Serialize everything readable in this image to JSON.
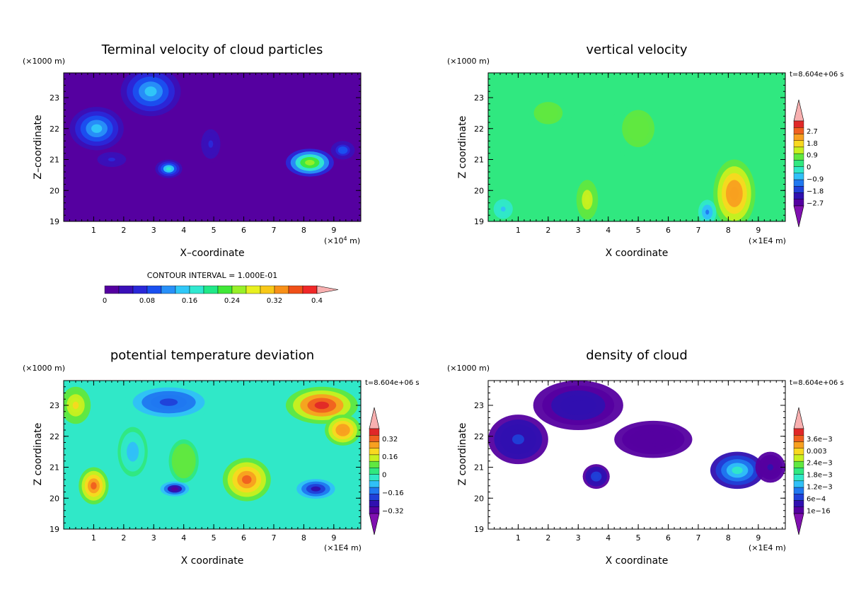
{
  "chart_data": [
    {
      "type": "heatmap",
      "title": "Terminal velocity of cloud particles",
      "xlabel": "X–coordinate",
      "ylabel": "Z–coordinate",
      "yunit": "(×1000 m)",
      "xunit_prefix": "(×10",
      "xunit_exp": "4",
      "xunit_suffix": " m)",
      "xlim": [
        0,
        9.9
      ],
      "ylim": [
        19,
        23.8
      ],
      "xticks": [
        "1",
        "2",
        "3",
        "4",
        "5",
        "6",
        "7",
        "8",
        "9"
      ],
      "yticks": [
        "19",
        "20",
        "21",
        "22",
        "23"
      ],
      "colorbar": {
        "orientation": "horizontal",
        "title": "CONTOUR INTERVAL = 1.000E-01",
        "labels": [
          "0",
          "0.08",
          "0.16",
          "0.24",
          "0.32",
          "0.4"
        ],
        "colors": [
          "#5500a0",
          "#3a10b8",
          "#2a28d8",
          "#1a50f0",
          "#2890f8",
          "#30c8f8",
          "#30e8d0",
          "#20e888",
          "#40e838",
          "#98f028",
          "#e8f020",
          "#f8c818",
          "#f89018",
          "#f05018",
          "#f02828",
          "#f8b0b0"
        ]
      },
      "background": "#5500a0",
      "blobs": [
        {
          "x": 1.1,
          "z": 22.0,
          "rx": 0.9,
          "rz": 0.7,
          "v": 0.12
        },
        {
          "x": 2.9,
          "z": 23.2,
          "rx": 1.0,
          "rz": 0.8,
          "v": 0.13
        },
        {
          "x": 3.5,
          "z": 20.7,
          "rx": 0.45,
          "rz": 0.3,
          "v": 0.15
        },
        {
          "x": 1.6,
          "z": 21.0,
          "rx": 0.6,
          "rz": 0.3,
          "v": 0.05
        },
        {
          "x": 4.9,
          "z": 21.5,
          "rx": 0.4,
          "rz": 0.6,
          "v": 0.05
        },
        {
          "x": 8.2,
          "z": 20.9,
          "rx": 0.8,
          "rz": 0.45,
          "v": 0.25
        },
        {
          "x": 9.3,
          "z": 21.3,
          "rx": 0.4,
          "rz": 0.3,
          "v": 0.09
        }
      ]
    },
    {
      "type": "heatmap",
      "title": "vertical velocity",
      "xlabel": "X coordinate",
      "ylabel": "Z coordinate",
      "yunit": "(×1000 m)",
      "xunit": "(×1E4 m)",
      "time_label": "t=8.604e+06 s",
      "xlim": [
        0,
        9.9
      ],
      "ylim": [
        19,
        23.8
      ],
      "xticks": [
        "1",
        "2",
        "3",
        "4",
        "5",
        "6",
        "7",
        "8",
        "9"
      ],
      "yticks": [
        "19",
        "20",
        "21",
        "22",
        "23"
      ],
      "colorbar": {
        "orientation": "vertical",
        "labels": [
          "2.7",
          "1.8",
          "0.9",
          "0",
          "−0.9",
          "−1.8",
          "−2.7"
        ],
        "colors": [
          "#e02828",
          "#f06020",
          "#f8a020",
          "#f8d820",
          "#c8f020",
          "#60e840",
          "#30e880",
          "#30e8c8",
          "#30c0f8",
          "#2078f0",
          "#2040d8",
          "#3010b0",
          "#5500a0"
        ]
      },
      "background": "#30e880",
      "blobs": [
        {
          "x": 3.3,
          "z": 19.7,
          "rx": 0.45,
          "rz": 0.8,
          "v": 1.2
        },
        {
          "x": 8.2,
          "z": 19.9,
          "rx": 0.7,
          "rz": 1.1,
          "v": 2.2
        },
        {
          "x": 2.0,
          "z": 22.5,
          "rx": 0.8,
          "rz": 0.6,
          "v": 0.5
        },
        {
          "x": 5.0,
          "z": 22.0,
          "rx": 0.9,
          "rz": 1.0,
          "v": 0.5
        },
        {
          "x": 7.3,
          "z": 19.3,
          "rx": 0.3,
          "rz": 0.4,
          "v": -1.5
        },
        {
          "x": 0.5,
          "z": 19.4,
          "rx": 0.4,
          "rz": 0.4,
          "v": -0.9
        }
      ]
    },
    {
      "type": "heatmap",
      "title": "potential temperature deviation",
      "xlabel": "X coordinate",
      "ylabel": "Z coordinate",
      "yunit": "(×1000 m)",
      "xunit": "(×1E4 m)",
      "time_label": "t=8.604e+06 s",
      "xlim": [
        0,
        9.9
      ],
      "ylim": [
        19,
        23.8
      ],
      "xticks": [
        "1",
        "2",
        "3",
        "4",
        "5",
        "6",
        "7",
        "8",
        "9"
      ],
      "yticks": [
        "19",
        "20",
        "21",
        "22",
        "23"
      ],
      "colorbar": {
        "orientation": "vertical",
        "labels": [
          "0.32",
          "0.16",
          "0",
          "−0.16",
          "−0.32"
        ],
        "colors": [
          "#e02828",
          "#f06020",
          "#f8a020",
          "#f8d820",
          "#c8f020",
          "#60e840",
          "#30e880",
          "#30e8c8",
          "#30c0f8",
          "#2078f0",
          "#2040d8",
          "#3010b0",
          "#5500a0"
        ]
      },
      "background": "#30e8c8",
      "blobs": [
        {
          "x": 1.0,
          "z": 20.4,
          "rx": 0.5,
          "rz": 0.6,
          "v": 0.36
        },
        {
          "x": 6.1,
          "z": 20.6,
          "rx": 0.8,
          "rz": 0.7,
          "v": 0.36
        },
        {
          "x": 8.6,
          "z": 23.0,
          "rx": 1.2,
          "rz": 0.6,
          "v": 0.4
        },
        {
          "x": 9.3,
          "z": 22.2,
          "rx": 0.6,
          "rz": 0.5,
          "v": 0.3
        },
        {
          "x": 3.7,
          "z": 20.3,
          "rx": 0.6,
          "rz": 0.3,
          "v": -0.38
        },
        {
          "x": 8.4,
          "z": 20.3,
          "rx": 0.8,
          "rz": 0.4,
          "v": -0.36
        },
        {
          "x": 3.5,
          "z": 23.1,
          "rx": 1.5,
          "rz": 0.6,
          "v": -0.28
        },
        {
          "x": 2.3,
          "z": 21.5,
          "rx": 0.5,
          "rz": 0.8,
          "v": -0.15
        },
        {
          "x": 4.0,
          "z": 21.2,
          "rx": 0.5,
          "rz": 0.7,
          "v": 0.1
        },
        {
          "x": 0.4,
          "z": 23.0,
          "rx": 0.5,
          "rz": 0.6,
          "v": 0.2
        }
      ]
    },
    {
      "type": "heatmap",
      "title": "density of cloud",
      "xlabel": "X coordinate",
      "ylabel": "Z coordinate",
      "yunit": "(×1000 m)",
      "xunit": "(×1E4 m)",
      "time_label": "t=8.604e+06 s",
      "xlim": [
        0,
        9.9
      ],
      "ylim": [
        19,
        23.8
      ],
      "xticks": [
        "1",
        "2",
        "3",
        "4",
        "5",
        "6",
        "7",
        "8",
        "9"
      ],
      "yticks": [
        "19",
        "20",
        "21",
        "22",
        "23"
      ],
      "colorbar": {
        "orientation": "vertical",
        "labels": [
          "3.6e−3",
          "0.003",
          "2.4e−3",
          "1.8e−3",
          "1.2e−3",
          "6e−4",
          "1e−16"
        ],
        "colors": [
          "#e02828",
          "#f06020",
          "#f8a020",
          "#f8d820",
          "#c8f020",
          "#60e840",
          "#30e880",
          "#30e8c8",
          "#30c0f8",
          "#2078f0",
          "#2040d8",
          "#3010b0",
          "#5500a0"
        ]
      },
      "background": "#ffffff",
      "blobs": [
        {
          "x": 1.0,
          "z": 21.9,
          "rx": 1.0,
          "rz": 0.8,
          "v": 0.0006
        },
        {
          "x": 3.0,
          "z": 23.0,
          "rx": 1.5,
          "rz": 0.8,
          "v": 0.0004
        },
        {
          "x": 5.5,
          "z": 21.9,
          "rx": 1.3,
          "rz": 0.6,
          "v": 0.0001
        },
        {
          "x": 3.6,
          "z": 20.7,
          "rx": 0.45,
          "rz": 0.4,
          "v": 0.0007
        },
        {
          "x": 8.3,
          "z": 20.9,
          "rx": 0.9,
          "rz": 0.6,
          "v": 0.0016
        },
        {
          "x": 9.4,
          "z": 21.0,
          "rx": 0.5,
          "rz": 0.5,
          "v": 0.0002
        }
      ]
    }
  ]
}
